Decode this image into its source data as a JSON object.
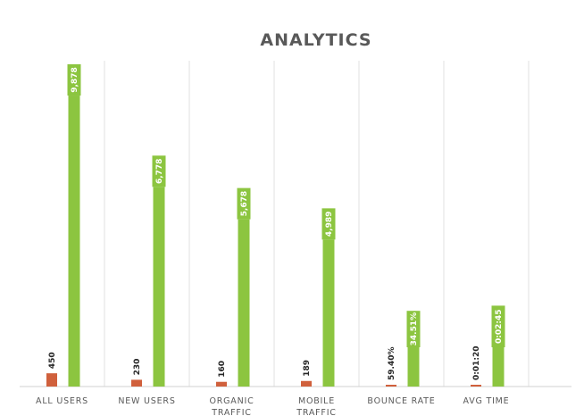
{
  "chart_data": {
    "type": "bar",
    "title": "ANALYTICS",
    "xlabel": "",
    "ylabel": "",
    "categories": [
      [
        "ALL USERS"
      ],
      [
        "NEW USERS"
      ],
      [
        "ORGANIC",
        "TRAFFIC"
      ],
      [
        "MOBILE",
        "TRAFFIC"
      ],
      [
        "BOUNCE RATE"
      ],
      [
        "AVG TIME"
      ]
    ],
    "series": [
      {
        "values": [
          450,
          230,
          160,
          189,
          59.4,
          80
        ],
        "labels": [
          "450",
          "230",
          "160",
          "189",
          "59.40%",
          "0:01:20"
        ],
        "color": "#d0603c"
      },
      {
        "values": [
          9878,
          6778,
          5678,
          4989,
          34.51,
          165
        ],
        "labels": [
          "9,878",
          "6,778",
          "5,678",
          "4,989",
          "34.51%",
          "0:02:45"
        ],
        "color": "#8cc540"
      }
    ],
    "ylim": [
      0,
      11000
    ],
    "grid": "vertical",
    "legend": "none",
    "colors": {
      "grid": "#e0e0e0",
      "axis": "#d0d0d0",
      "title": "#595959",
      "category_text": "#595959",
      "value_text_dark": "#262626"
    }
  }
}
